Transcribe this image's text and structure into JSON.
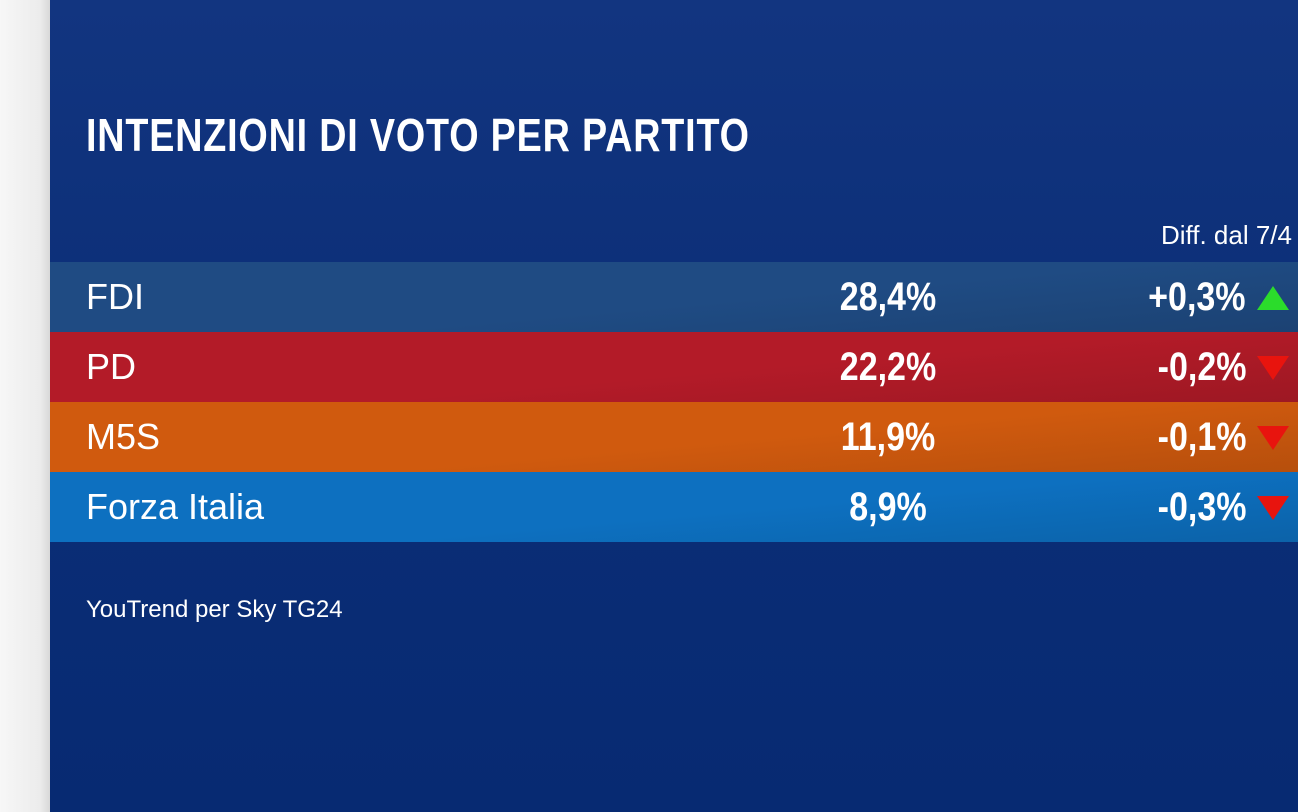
{
  "chart_data": {
    "type": "table",
    "title": "INTENZIONI DI VOTO PER PARTITO",
    "diff_header": "Diff. dal 7/4",
    "source": "YouTrend per Sky TG24",
    "rows": [
      {
        "party": "FDI",
        "value_label": "28,4%",
        "value": 28.4,
        "diff_label": "+0,3%",
        "diff": 0.3,
        "trend": "up",
        "color": "#1f4b83"
      },
      {
        "party": "PD",
        "value_label": "22,2%",
        "value": 22.2,
        "diff_label": "-0,2%",
        "diff": -0.2,
        "trend": "down",
        "color": "#b31b28"
      },
      {
        "party": "M5S",
        "value_label": "11,9%",
        "value": 11.9,
        "diff_label": "-0,1%",
        "diff": -0.1,
        "trend": "down",
        "color": "#d05a0e"
      },
      {
        "party": "Forza Italia",
        "value_label": "8,9%",
        "value": 8.9,
        "diff_label": "-0,3%",
        "diff": -0.3,
        "trend": "down",
        "color": "#0d70c0"
      }
    ],
    "trend_colors": {
      "up": "#2bdc2b",
      "down": "#e8140e"
    }
  }
}
